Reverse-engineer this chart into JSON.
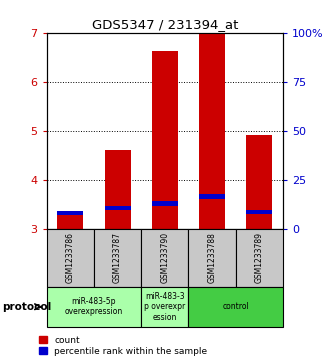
{
  "title": "GDS5347 / 231394_at",
  "samples": [
    "GSM1233786",
    "GSM1233787",
    "GSM1233790",
    "GSM1233788",
    "GSM1233789"
  ],
  "bar_bottoms": [
    3.0,
    3.0,
    3.0,
    3.0,
    3.0
  ],
  "bar_tops": [
    3.35,
    4.6,
    6.62,
    7.0,
    4.92
  ],
  "blue_bottoms": [
    3.28,
    3.38,
    3.46,
    3.6,
    3.3
  ],
  "blue_tops": [
    3.37,
    3.46,
    3.57,
    3.7,
    3.38
  ],
  "ylim_left": [
    3,
    7
  ],
  "ylim_right": [
    0,
    100
  ],
  "yticks_left": [
    3,
    4,
    5,
    6,
    7
  ],
  "yticks_right": [
    0,
    25,
    50,
    75,
    100
  ],
  "ytick_labels_right": [
    "0",
    "25",
    "50",
    "75",
    "100%"
  ],
  "bar_color_red": "#cc0000",
  "bar_color_blue": "#0000cc",
  "bar_width": 0.55,
  "groups": [
    {
      "label": "miR-483-5p\noverexpression",
      "indices": [
        0,
        1
      ],
      "color": "#aaffaa"
    },
    {
      "label": "miR-483-3\np overexpr\nession",
      "indices": [
        2
      ],
      "color": "#aaffaa"
    },
    {
      "label": "control",
      "indices": [
        3,
        4
      ],
      "color": "#44cc44"
    }
  ],
  "protocol_label": "protocol",
  "legend_red_label": "count",
  "legend_blue_label": "percentile rank within the sample",
  "left_tick_color": "#cc0000",
  "right_tick_color": "#0000cc",
  "sample_box_color": "#c8c8c8",
  "gridline_y": [
    4,
    5,
    6
  ]
}
